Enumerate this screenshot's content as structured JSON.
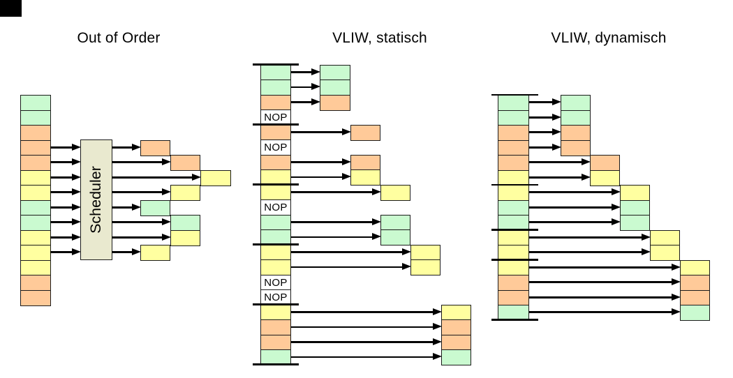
{
  "colors": {
    "green": "#cafad0",
    "orange": "#ffca99",
    "yellow": "#ffffa0",
    "scheduler_fill": "#e9e9cf",
    "nop_fill": "#ffffff",
    "border": "#1b1b1b",
    "arrow": "#000000",
    "corner_mark": "#000000"
  },
  "panels": {
    "out_of_order": {
      "title": "Out of Order",
      "scheduler_label": "Scheduler",
      "instruction_column": [
        "green",
        "green",
        "orange",
        "orange",
        "orange",
        "yellow",
        "yellow",
        "green",
        "green",
        "yellow",
        "yellow",
        "yellow",
        "orange",
        "orange"
      ],
      "scheduled_rows": [
        3,
        4,
        5,
        6,
        7,
        8,
        9,
        10
      ],
      "outputs": [
        {
          "row": 3,
          "col": 1,
          "color": "orange"
        },
        {
          "row": 4,
          "col": 2,
          "color": "orange"
        },
        {
          "row": 5,
          "col": 3,
          "color": "yellow"
        },
        {
          "row": 6,
          "col": 2,
          "color": "yellow"
        },
        {
          "row": 7,
          "col": 1,
          "color": "green"
        },
        {
          "row": 8,
          "col": 2,
          "color": "green"
        },
        {
          "row": 9,
          "col": 2,
          "color": "yellow"
        },
        {
          "row": 10,
          "col": 1,
          "color": "yellow"
        }
      ]
    },
    "vliw_static": {
      "title": "VLIW, statisch",
      "nop_label": "NOP",
      "instruction_column": [
        "green",
        "green",
        "orange",
        "nop",
        "orange",
        "nop",
        "orange",
        "yellow",
        "yellow",
        "nop",
        "green",
        "green",
        "yellow",
        "yellow",
        "nop",
        "nop",
        "yellow",
        "orange",
        "orange",
        "green"
      ],
      "bundle_boundaries": [
        0,
        4,
        8,
        12,
        16,
        20
      ],
      "outputs": [
        {
          "row": 0,
          "col": 1,
          "color": "green"
        },
        {
          "row": 1,
          "col": 1,
          "color": "green"
        },
        {
          "row": 2,
          "col": 1,
          "color": "orange"
        },
        {
          "row": 4,
          "col": 2,
          "color": "orange"
        },
        {
          "row": 6,
          "col": 2,
          "color": "orange"
        },
        {
          "row": 7,
          "col": 2,
          "color": "yellow"
        },
        {
          "row": 8,
          "col": 3,
          "color": "yellow"
        },
        {
          "row": 10,
          "col": 3,
          "color": "green"
        },
        {
          "row": 11,
          "col": 3,
          "color": "green"
        },
        {
          "row": 12,
          "col": 4,
          "color": "yellow"
        },
        {
          "row": 13,
          "col": 4,
          "color": "yellow"
        },
        {
          "row": 16,
          "col": 5,
          "color": "yellow"
        },
        {
          "row": 17,
          "col": 5,
          "color": "orange"
        },
        {
          "row": 18,
          "col": 5,
          "color": "orange"
        },
        {
          "row": 19,
          "col": 5,
          "color": "green"
        }
      ]
    },
    "vliw_dynamic": {
      "title": "VLIW, dynamisch",
      "instruction_column": [
        "green",
        "green",
        "orange",
        "orange",
        "orange",
        "yellow",
        "yellow",
        "green",
        "green",
        "yellow",
        "yellow",
        "yellow",
        "orange",
        "orange",
        "green"
      ],
      "bundle_boundaries": [
        0,
        6,
        9,
        11,
        15
      ],
      "outputs": [
        {
          "row": 0,
          "col": 1,
          "color": "green"
        },
        {
          "row": 1,
          "col": 1,
          "color": "green"
        },
        {
          "row": 2,
          "col": 1,
          "color": "orange"
        },
        {
          "row": 3,
          "col": 1,
          "color": "orange"
        },
        {
          "row": 4,
          "col": 2,
          "color": "orange"
        },
        {
          "row": 5,
          "col": 2,
          "color": "yellow"
        },
        {
          "row": 6,
          "col": 3,
          "color": "yellow"
        },
        {
          "row": 7,
          "col": 3,
          "color": "green"
        },
        {
          "row": 8,
          "col": 3,
          "color": "green"
        },
        {
          "row": 9,
          "col": 4,
          "color": "yellow"
        },
        {
          "row": 10,
          "col": 4,
          "color": "yellow"
        },
        {
          "row": 11,
          "col": 5,
          "color": "yellow"
        },
        {
          "row": 12,
          "col": 5,
          "color": "orange"
        },
        {
          "row": 13,
          "col": 5,
          "color": "orange"
        },
        {
          "row": 14,
          "col": 5,
          "color": "green"
        }
      ]
    }
  }
}
